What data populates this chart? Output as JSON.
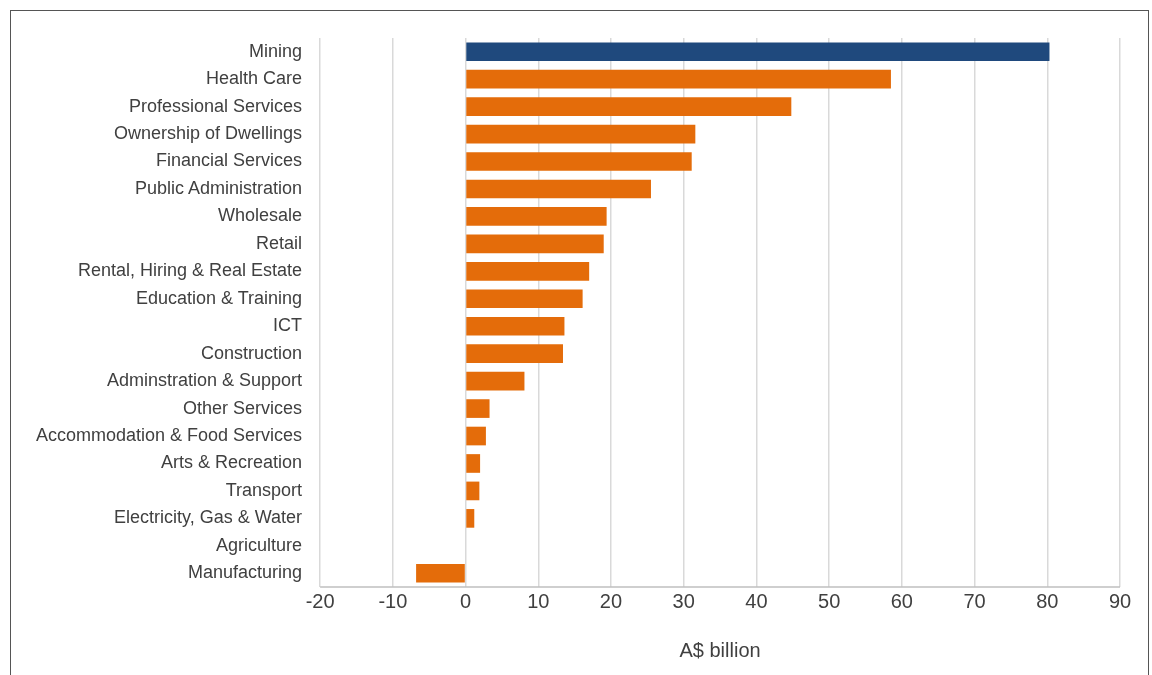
{
  "chart_data": {
    "type": "bar",
    "orientation": "horizontal",
    "xlabel": "A$ billion",
    "categories": [
      "Mining",
      "Health Care",
      "Professional Services",
      "Ownership of Dwellings",
      "Financial Services",
      "Public Administration",
      "Wholesale",
      "Retail",
      "Rental, Hiring & Real Estate",
      "Education & Training",
      "ICT",
      "Construction",
      "Adminstration & Support",
      "Other Services",
      "Accommodation & Food Services",
      "Arts & Recreation",
      "Transport",
      "Electricity, Gas & Water",
      "Agriculture",
      "Manufacturing"
    ],
    "values": [
      80.3,
      58.5,
      44.8,
      31.6,
      31.1,
      25.5,
      19.4,
      19.0,
      17.0,
      16.1,
      13.6,
      13.4,
      8.1,
      3.3,
      2.8,
      2.0,
      1.9,
      1.2,
      0,
      -6.8
    ],
    "colors": [
      "#1f497d",
      "#e46c0a",
      "#e46c0a",
      "#e46c0a",
      "#e46c0a",
      "#e46c0a",
      "#e46c0a",
      "#e46c0a",
      "#e46c0a",
      "#e46c0a",
      "#e46c0a",
      "#e46c0a",
      "#e46c0a",
      "#e46c0a",
      "#e46c0a",
      "#e46c0a",
      "#e46c0a",
      "#e46c0a",
      "#e46c0a",
      "#e46c0a"
    ],
    "xlim": [
      -20,
      90
    ],
    "xticks": [
      -20,
      -10,
      0,
      10,
      20,
      30,
      40,
      50,
      60,
      70,
      80,
      90
    ],
    "grid": "x",
    "legend": false
  }
}
